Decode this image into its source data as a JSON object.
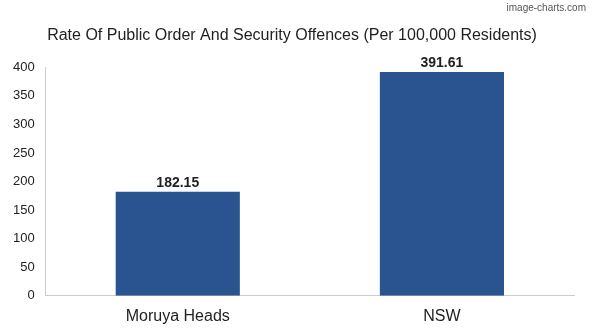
{
  "chart_data": {
    "type": "bar",
    "title": "Rate Of Public Order And Security Offences (Per 100,000 Residents)",
    "categories": [
      "Moruya Heads",
      "NSW"
    ],
    "values": [
      182.15,
      391.61
    ],
    "color": "#2a5490",
    "ylim": [
      0,
      400
    ],
    "yticks": [
      0,
      50,
      100,
      150,
      200,
      250,
      300,
      350,
      400
    ],
    "grid": false,
    "data_labels": true,
    "annotations": [
      "image-charts.com"
    ]
  }
}
